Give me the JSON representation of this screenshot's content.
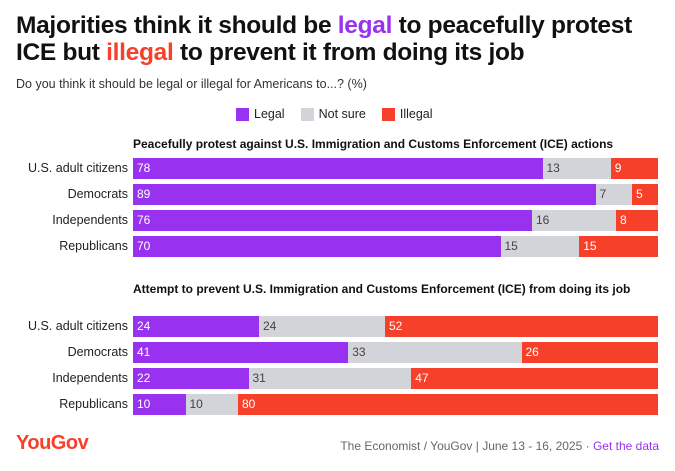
{
  "title": {
    "part1": "Majorities think it should be ",
    "legal_word": "legal",
    "part2": " to peacefully protest ICE but ",
    "illegal_word": "illegal",
    "part3": " to prevent it from doing its job"
  },
  "subtitle": "Do you think it should be legal or illegal for Americans to...? (%)",
  "legend": [
    {
      "label": "Legal",
      "color": "#9932f0"
    },
    {
      "label": "Not sure",
      "color": "#d3d4d9"
    },
    {
      "label": "Illegal",
      "color": "#f7402a"
    }
  ],
  "colors": {
    "legal": "#9932f0",
    "notsure": "#d3d4d9",
    "illegal": "#f7402a"
  },
  "chart_data": [
    {
      "type": "bar",
      "orientation": "horizontal",
      "stacked": true,
      "title": "Peacefully protest against U.S. Immigration and Customs Enforcement (ICE) actions",
      "categories": [
        "U.S. adult citizens",
        "Democrats",
        "Independents",
        "Republicans"
      ],
      "series": [
        {
          "name": "Legal",
          "values": [
            78,
            89,
            76,
            70
          ]
        },
        {
          "name": "Not sure",
          "values": [
            13,
            7,
            16,
            15
          ]
        },
        {
          "name": "Illegal",
          "values": [
            9,
            5,
            8,
            15
          ]
        }
      ]
    },
    {
      "type": "bar",
      "orientation": "horizontal",
      "stacked": true,
      "title": "Attempt to prevent U.S. Immigration and Customs Enforcement (ICE) from doing its job",
      "categories": [
        "U.S. adult citizens",
        "Democrats",
        "Independents",
        "Republicans"
      ],
      "series": [
        {
          "name": "Legal",
          "values": [
            24,
            41,
            22,
            10
          ]
        },
        {
          "name": "Not sure",
          "values": [
            24,
            33,
            31,
            10
          ]
        },
        {
          "name": "Illegal",
          "values": [
            52,
            26,
            47,
            80
          ]
        }
      ]
    }
  ],
  "footer": {
    "logo": "YouGov",
    "source": "The Economist / YouGov | June 13 - 16, 2025 · ",
    "link": "Get the data"
  }
}
